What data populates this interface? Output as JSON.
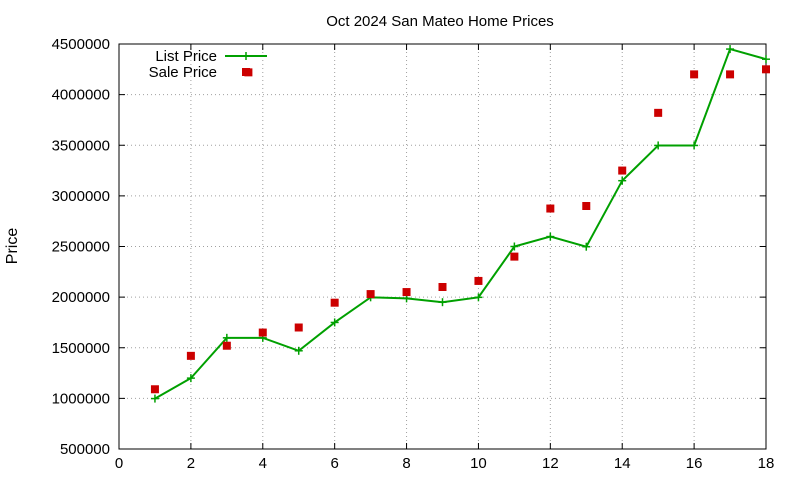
{
  "chart_data": {
    "type": "line",
    "title": "Oct 2024 San Mateo Home Prices",
    "xlabel": "",
    "ylabel": "Price",
    "xlim": [
      0,
      18
    ],
    "ylim": [
      500000,
      4500000
    ],
    "x_ticks": [
      "0",
      "2",
      "4",
      "6",
      "8",
      "10",
      "12",
      "14",
      "16",
      "18"
    ],
    "y_ticks": [
      "500000",
      "1000000",
      "1500000",
      "2000000",
      "2500000",
      "3000000",
      "3500000",
      "4000000",
      "4500000"
    ],
    "grid": true,
    "legend_position": "top-left",
    "series": [
      {
        "name": "List Price",
        "style": "line-with-plus-markers",
        "color": "#00a000",
        "x": [
          1,
          2,
          3,
          4,
          5,
          6,
          7,
          8,
          9,
          10,
          11,
          12,
          13,
          14,
          15,
          16,
          17,
          18
        ],
        "values": [
          998000,
          1200000,
          1598000,
          1598000,
          1470000,
          1750000,
          1998000,
          1988000,
          1950000,
          1998000,
          2500000,
          2598000,
          2498000,
          3150000,
          3498000,
          3498000,
          4450000,
          4350000
        ]
      },
      {
        "name": "Sale Price",
        "style": "square-markers",
        "color": "#cc0000",
        "x": [
          1,
          2,
          3,
          3.6,
          4,
          5,
          6,
          7,
          8,
          9,
          10,
          11,
          12,
          13,
          14,
          15,
          16,
          17,
          18
        ],
        "values": [
          1090000,
          1420000,
          1520000,
          4220000,
          1650000,
          1700000,
          1945000,
          2030000,
          2050000,
          2100000,
          2160000,
          2400000,
          2875000,
          2900000,
          3250000,
          3820000,
          4200000,
          4200000,
          4250000
        ]
      }
    ]
  }
}
